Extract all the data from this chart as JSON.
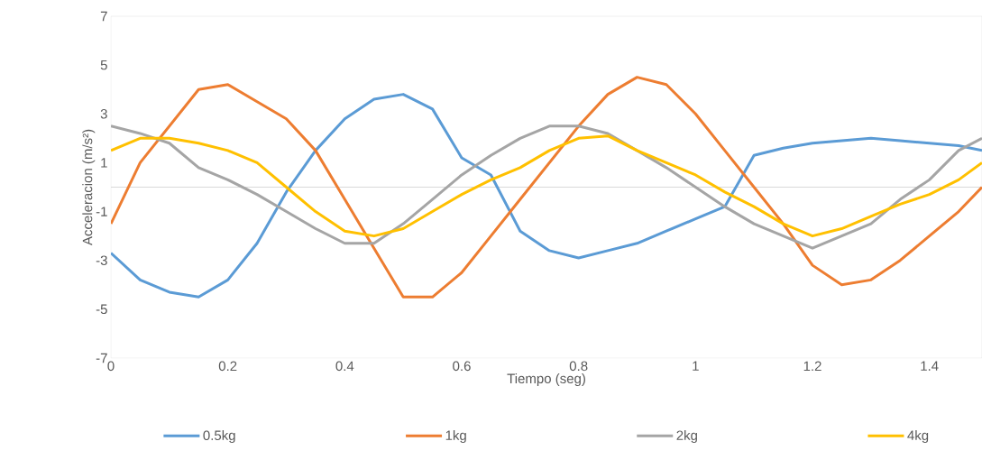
{
  "chart_data": {
    "type": "line",
    "xlabel": "Tiempo (seg)",
    "ylabel": "Acceleracion (m/s²)",
    "x": [
      0,
      0.05,
      0.1,
      0.15,
      0.2,
      0.25,
      0.3,
      0.35,
      0.4,
      0.45,
      0.5,
      0.55,
      0.6,
      0.65,
      0.7,
      0.75,
      0.8,
      0.85,
      0.9,
      0.95,
      1.0,
      1.05,
      1.1,
      1.15,
      1.2,
      1.25,
      1.3,
      1.35,
      1.4,
      1.45,
      1.49
    ],
    "xlim": [
      0,
      1.49
    ],
    "xticks": [
      0,
      0.2,
      0.4,
      0.6,
      0.8,
      1,
      1.2,
      1.4
    ],
    "ylim": [
      -7,
      7
    ],
    "yticks": [
      -7,
      -5,
      -3,
      -1,
      1,
      3,
      5,
      7
    ],
    "ref_lines": [
      {
        "axis": "y",
        "value": 0,
        "color": "#d9d9d9"
      }
    ],
    "legend": "bottom",
    "grid": false,
    "marker": "none",
    "line_style": "solid",
    "series": [
      {
        "name": "0.5kg",
        "color": "#5b9bd5",
        "values": [
          -2.7,
          -3.8,
          -4.3,
          -4.5,
          -3.8,
          -2.3,
          -0.2,
          1.5,
          2.8,
          3.6,
          3.8,
          3.2,
          1.2,
          0.5,
          -1.8,
          -2.6,
          -2.9,
          -2.6,
          -2.3,
          -1.8,
          -1.3,
          -0.8,
          1.3,
          1.6,
          1.8,
          1.9,
          2.0,
          1.9,
          1.8,
          1.7,
          1.5
        ]
      },
      {
        "name": "1kg",
        "color": "#ed7d31",
        "values": [
          -1.5,
          1,
          2.5,
          4,
          4.2,
          3.5,
          2.8,
          1.5,
          -0.5,
          -2.5,
          -4.5,
          -4.5,
          -3.5,
          -2,
          -0.5,
          1,
          2.5,
          3.8,
          4.5,
          4.2,
          3,
          1.5,
          0,
          -1.5,
          -3.2,
          -4,
          -3.8,
          -3,
          -2,
          -1,
          0
        ]
      },
      {
        "name": "2kg",
        "color": "#a5a5a5",
        "values": [
          2.5,
          2.2,
          1.8,
          0.8,
          0.3,
          -0.3,
          -1,
          -1.7,
          -2.3,
          -2.3,
          -1.5,
          -0.5,
          0.5,
          1.3,
          2,
          2.5,
          2.5,
          2.2,
          1.5,
          0.8,
          0,
          -0.8,
          -1.5,
          -2,
          -2.5,
          -2,
          -1.5,
          -0.5,
          0.3,
          1.5,
          2
        ]
      },
      {
        "name": "4kg",
        "color": "#ffc000",
        "values": [
          1.5,
          2,
          2,
          1.8,
          1.5,
          1,
          0,
          -1,
          -1.8,
          -2,
          -1.7,
          -1,
          -0.3,
          0.3,
          0.8,
          1.5,
          2,
          2.1,
          1.5,
          1,
          0.5,
          -0.2,
          -0.8,
          -1.5,
          -2,
          -1.7,
          -1.2,
          -0.7,
          -0.3,
          0.3,
          1
        ]
      }
    ]
  }
}
